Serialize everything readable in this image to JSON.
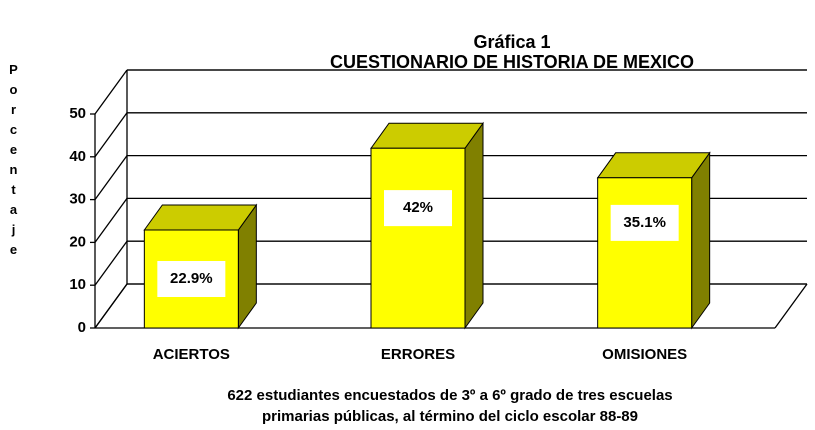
{
  "chart_data": {
    "type": "bar3d",
    "title": "Gráfica 1",
    "subtitle": "CUESTIONARIO DE HISTORIA DE MEXICO",
    "ylabel": "Porcentaje",
    "categories": [
      "ACIERTOS",
      "ERRORES",
      "OMISIONES"
    ],
    "values": [
      22.9,
      42,
      35.1
    ],
    "value_labels": [
      "22.9%",
      "42%",
      "35.1%"
    ],
    "color": "#ffff00",
    "ylim": [
      0,
      50
    ],
    "yticks": [
      0,
      10,
      20,
      30,
      40,
      50
    ],
    "grid": true,
    "notes": [
      "622 estudiantes encuestados de 3º a 6º grado de tres escuelas",
      "primarias públicas, al término del ciclo escolar  88-89"
    ]
  }
}
